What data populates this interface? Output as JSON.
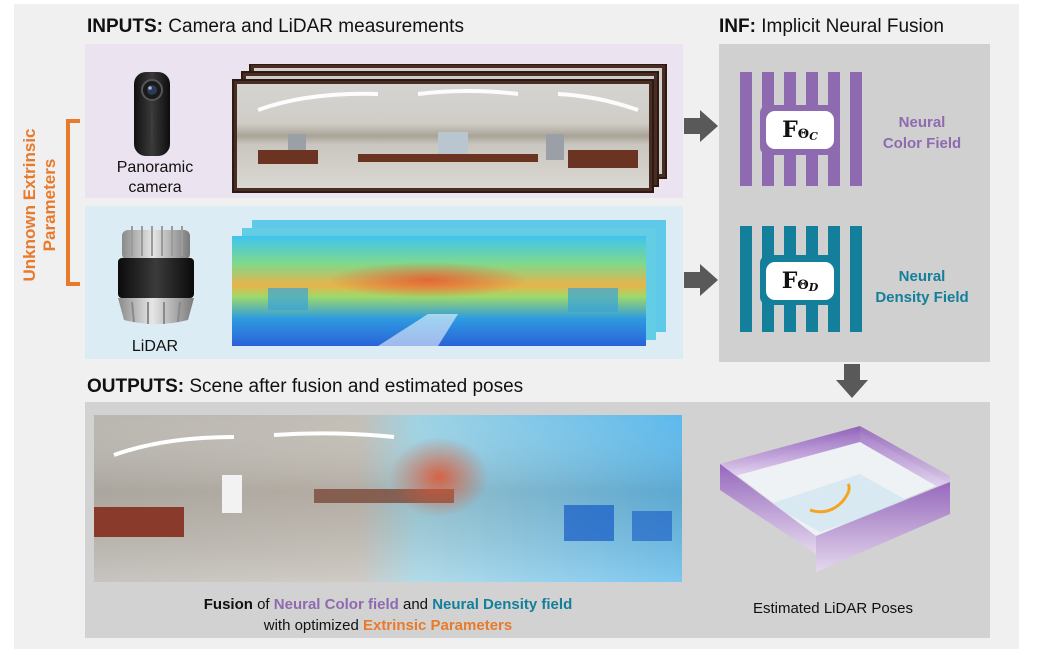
{
  "inputs": {
    "title_bold": "INPUTS:",
    "title_rest": " Camera and LiDAR measurements"
  },
  "inf": {
    "title_bold": "INF:",
    "title_rest": " Implicit Neural Fusion"
  },
  "outputs": {
    "title_bold": "OUTPUTS:",
    "title_rest": " Scene after fusion and estimated poses"
  },
  "extrinsic_label": {
    "line1": "Unknown Extrinsic",
    "line2": "Parameters"
  },
  "camera": {
    "label_line1": "Panoramic",
    "label_line2": "camera"
  },
  "lidar": {
    "label": "LiDAR"
  },
  "color_field": {
    "symbol_main": "F",
    "symbol_sub": "Θ",
    "symbol_subsub": "C",
    "label_line1": "Neural",
    "label_line2": "Color Field"
  },
  "density_field": {
    "symbol_main": "F",
    "symbol_sub": "Θ",
    "symbol_subsub": "D",
    "label_line1": "Neural",
    "label_line2": "Density Field"
  },
  "fusion_caption": {
    "w1": "Fusion",
    "w2": " of ",
    "w3": "Neural Color field",
    "w4": " and ",
    "w5": "Neural Density field",
    "line2_a": "with optimized ",
    "line2_b": "Extrinsic Parameters"
  },
  "poses_caption": "Estimated LiDAR Poses",
  "colors": {
    "purple": "#8e6bb0",
    "teal": "#137f9a",
    "orange": "#e87a2c",
    "arrow": "#595959"
  }
}
